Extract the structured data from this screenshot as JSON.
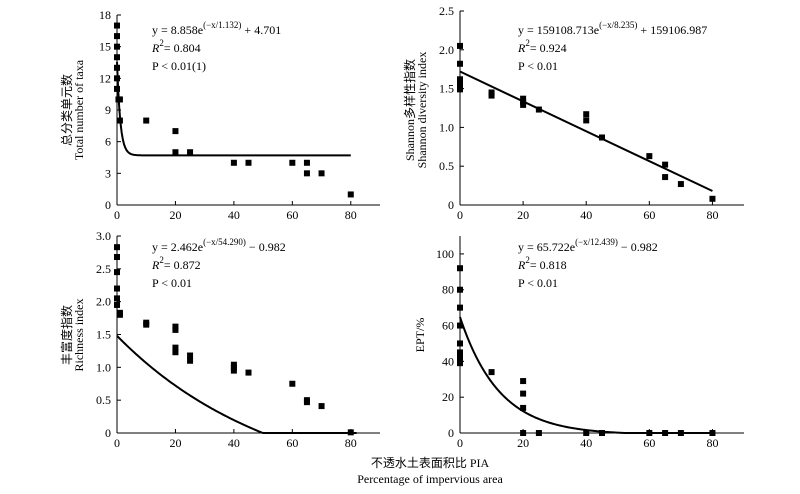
{
  "figure": {
    "xlabel_cn": "不透水土表面积比 PIA",
    "xlabel_en": "Percentage of impervious area"
  },
  "chart_data": [
    {
      "type": "scatter",
      "id": "taxa",
      "ylabel_cn": "总分类单元数",
      "ylabel_en": "Total number of taxa",
      "xlim": [
        0,
        90
      ],
      "ylim": [
        0,
        18
      ],
      "xticks": [
        0,
        20,
        40,
        60,
        80
      ],
      "yticks": [
        0,
        3,
        6,
        9,
        12,
        15,
        18
      ],
      "equation": {
        "prefix": "y = 8.858e",
        "exponent": "(−x/1.132)",
        "suffix": " + 4.701",
        "r2": "= 0.804",
        "p": "P < 0.01(1)"
      },
      "fit": {
        "a": 8.858,
        "b": 1.132,
        "c": 4.701,
        "xmax": 80
      },
      "points": [
        [
          0,
          17
        ],
        [
          0,
          16
        ],
        [
          0,
          15
        ],
        [
          0,
          14
        ],
        [
          0,
          13
        ],
        [
          0,
          12
        ],
        [
          0,
          11
        ],
        [
          0.5,
          10
        ],
        [
          1,
          8
        ],
        [
          1,
          10
        ],
        [
          10,
          8
        ],
        [
          20,
          7
        ],
        [
          20,
          5
        ],
        [
          25,
          5
        ],
        [
          40,
          4
        ],
        [
          45,
          4
        ],
        [
          60,
          4
        ],
        [
          65,
          4
        ],
        [
          65,
          3
        ],
        [
          70,
          3
        ],
        [
          80,
          1
        ]
      ]
    },
    {
      "type": "scatter",
      "id": "shannon",
      "ylabel_cn": "Shannon多样性指数",
      "ylabel_en": "Shannon diversity index",
      "xlim": [
        0,
        90
      ],
      "ylim": [
        0,
        2.5
      ],
      "xticks": [
        0,
        20,
        40,
        60,
        80
      ],
      "yticks": [
        0,
        0.5,
        1.0,
        1.5,
        2.0,
        2.5
      ],
      "ytick_labels": [
        "0",
        "0.5",
        "1.0",
        "1.5",
        "2.0",
        "2.5"
      ],
      "equation": {
        "prefix": "y = 159108.713e",
        "exponent": "(−x/8.235)",
        "suffix": " + 159106.987",
        "r2": "= 0.924",
        "p": "P < 0.01"
      },
      "fit": {
        "type": "linear",
        "y0": 1.72,
        "y80": 0.18
      },
      "points": [
        [
          0,
          2.05
        ],
        [
          0,
          1.82
        ],
        [
          0,
          1.62
        ],
        [
          0,
          1.56
        ],
        [
          0,
          1.52
        ],
        [
          0,
          1.49
        ],
        [
          10,
          1.45
        ],
        [
          10,
          1.41
        ],
        [
          20,
          1.37
        ],
        [
          20,
          1.33
        ],
        [
          20,
          1.29
        ],
        [
          25,
          1.23
        ],
        [
          40,
          1.17
        ],
        [
          40,
          1.09
        ],
        [
          45,
          0.87
        ],
        [
          60,
          0.63
        ],
        [
          65,
          0.52
        ],
        [
          65,
          0.36
        ],
        [
          70,
          0.27
        ],
        [
          80,
          0.08
        ]
      ]
    },
    {
      "type": "scatter",
      "id": "richness",
      "ylabel_cn": "丰富度指数",
      "ylabel_en": "Richness index",
      "xlim": [
        0,
        90
      ],
      "ylim": [
        0,
        3.0
      ],
      "xticks": [
        0,
        20,
        40,
        60,
        80
      ],
      "yticks": [
        0,
        0.5,
        1.0,
        1.5,
        2.0,
        2.5,
        3.0
      ],
      "ytick_labels": [
        "0",
        "0.5",
        "1.0",
        "1.5",
        "2.0",
        "2.5",
        "3.0"
      ],
      "equation": {
        "prefix": "y = 2.462e",
        "exponent": "(−x/54.290)",
        "suffix": " − 0.982",
        "r2": "= 0.872",
        "p": "P < 0.01"
      },
      "fit": {
        "a": 2.462,
        "b": 54.29,
        "c": -0.982,
        "xmax": 82
      },
      "points": [
        [
          0,
          2.83
        ],
        [
          0,
          2.68
        ],
        [
          0,
          2.45
        ],
        [
          0,
          2.2
        ],
        [
          0,
          2.05
        ],
        [
          0,
          1.95
        ],
        [
          1,
          1.83
        ],
        [
          1,
          1.8
        ],
        [
          10,
          1.68
        ],
        [
          10,
          1.65
        ],
        [
          20,
          1.62
        ],
        [
          20,
          1.57
        ],
        [
          20,
          1.3
        ],
        [
          20,
          1.23
        ],
        [
          25,
          1.18
        ],
        [
          25,
          1.1
        ],
        [
          40,
          1.04
        ],
        [
          40,
          1.0
        ],
        [
          40,
          0.95
        ],
        [
          45,
          0.92
        ],
        [
          60,
          0.75
        ],
        [
          65,
          0.5
        ],
        [
          65,
          0.47
        ],
        [
          70,
          0.41
        ],
        [
          80,
          0.01
        ]
      ]
    },
    {
      "type": "scatter",
      "id": "ept",
      "ylabel_en": "EPT/%",
      "xlim": [
        0,
        90
      ],
      "ylim": [
        0,
        110
      ],
      "xticks": [
        0,
        20,
        40,
        60,
        80
      ],
      "yticks": [
        0,
        20,
        40,
        60,
        80,
        100
      ],
      "equation": {
        "prefix": "y = 65.722e",
        "exponent": "(−x/12.439)",
        "suffix": " − 0.982",
        "r2": "= 0.818",
        "p": "P < 0.01"
      },
      "fit": {
        "a": 65.722,
        "b": 12.439,
        "c": -0.982,
        "xmax": 80
      },
      "points": [
        [
          0,
          92
        ],
        [
          0,
          80
        ],
        [
          0,
          70
        ],
        [
          0,
          60
        ],
        [
          0,
          50
        ],
        [
          0,
          45
        ],
        [
          0,
          42
        ],
        [
          0,
          39
        ],
        [
          10,
          34
        ],
        [
          20,
          29
        ],
        [
          20,
          22
        ],
        [
          20,
          14
        ],
        [
          20,
          0
        ],
        [
          25,
          0
        ],
        [
          40,
          0
        ],
        [
          45,
          0
        ],
        [
          60,
          0
        ],
        [
          65,
          0
        ],
        [
          70,
          0
        ],
        [
          80,
          0
        ]
      ]
    }
  ]
}
